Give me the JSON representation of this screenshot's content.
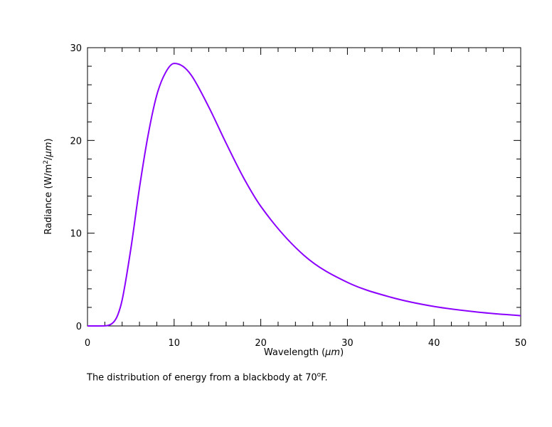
{
  "chart_data": {
    "type": "line",
    "title": "",
    "xlabel": "Wavelength (μm)",
    "ylabel": "Radiance (W/m²/μm)",
    "xlim": [
      0,
      50
    ],
    "ylim": [
      0,
      30
    ],
    "x_ticks": [
      0,
      10,
      20,
      30,
      40,
      50
    ],
    "y_ticks": [
      0,
      10,
      20,
      30
    ],
    "x_minor_step": 2,
    "y_minor_step": 2,
    "grid": false,
    "series": [
      {
        "name": "Blackbody at 70°F",
        "color": "#8b00ff",
        "x": [
          0,
          2,
          3,
          3.5,
          4,
          5,
          6,
          7,
          8,
          9,
          10,
          11,
          12,
          14,
          16,
          18,
          20,
          25,
          30,
          35,
          40,
          45,
          50
        ],
        "y": [
          0,
          0.01,
          0.4,
          1.2,
          2.8,
          8.3,
          14.9,
          20.6,
          24.9,
          27.3,
          28.3,
          28.0,
          27.0,
          23.6,
          19.7,
          16.0,
          12.9,
          7.6,
          4.7,
          3.1,
          2.1,
          1.5,
          1.1
        ]
      }
    ],
    "caption": "The distribution of energy from a blackbody at 70°F."
  },
  "labels": {
    "xlabel_prefix": "Wavelength (",
    "xlabel_unit": "μm",
    "xlabel_suffix": ")",
    "ylabel_prefix": "Radiance (W/m",
    "ylabel_sup": "2",
    "ylabel_mid": "/",
    "ylabel_unit": "μm",
    "ylabel_suffix": ")",
    "caption_prefix": "The distribution of energy from a blackbody at 70",
    "caption_sup": "o",
    "caption_suffix": "F."
  }
}
